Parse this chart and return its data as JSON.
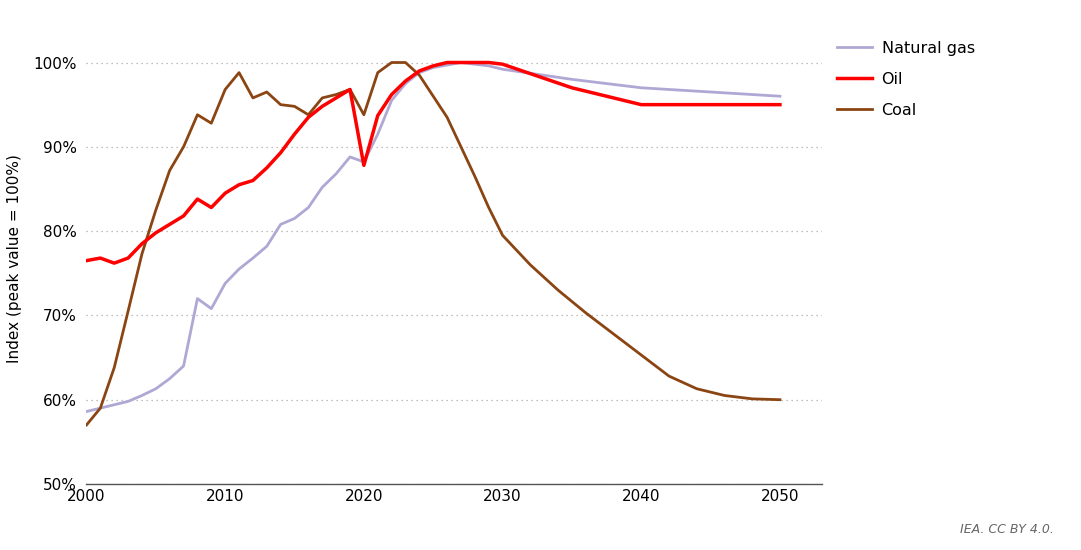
{
  "ylabel": "Index (peak value = 100%)",
  "xlim": [
    2000,
    2053
  ],
  "ylim": [
    0.5,
    1.035
  ],
  "yticks": [
    0.5,
    0.6,
    0.7,
    0.8,
    0.9,
    1.0
  ],
  "xticks": [
    2000,
    2010,
    2020,
    2030,
    2040,
    2050
  ],
  "background_color": "#ffffff",
  "credit": "IEA. CC BY 4.0.",
  "natural_gas": {
    "label": "Natural gas",
    "color": "#b0a8d4",
    "linewidth": 2.0,
    "x": [
      2000,
      2001,
      2002,
      2003,
      2004,
      2005,
      2006,
      2007,
      2008,
      2009,
      2010,
      2011,
      2012,
      2013,
      2014,
      2015,
      2016,
      2017,
      2018,
      2019,
      2020,
      2021,
      2022,
      2023,
      2024,
      2025,
      2026,
      2027,
      2028,
      2029,
      2030,
      2035,
      2040,
      2045,
      2050
    ],
    "y": [
      0.586,
      0.59,
      0.594,
      0.598,
      0.605,
      0.613,
      0.625,
      0.64,
      0.72,
      0.708,
      0.738,
      0.755,
      0.768,
      0.782,
      0.808,
      0.815,
      0.828,
      0.852,
      0.868,
      0.888,
      0.882,
      0.915,
      0.955,
      0.975,
      0.988,
      0.994,
      0.997,
      1.0,
      0.998,
      0.996,
      0.992,
      0.98,
      0.97,
      0.965,
      0.96
    ]
  },
  "oil": {
    "label": "Oil",
    "color": "#ff0000",
    "linewidth": 2.5,
    "x": [
      2000,
      2001,
      2002,
      2003,
      2004,
      2005,
      2006,
      2007,
      2008,
      2009,
      2010,
      2011,
      2012,
      2013,
      2014,
      2015,
      2016,
      2017,
      2018,
      2019,
      2020,
      2021,
      2022,
      2023,
      2024,
      2025,
      2026,
      2027,
      2028,
      2029,
      2030,
      2035,
      2040,
      2045,
      2050
    ],
    "y": [
      0.765,
      0.768,
      0.762,
      0.768,
      0.785,
      0.798,
      0.808,
      0.818,
      0.838,
      0.828,
      0.845,
      0.855,
      0.86,
      0.875,
      0.893,
      0.915,
      0.935,
      0.948,
      0.958,
      0.968,
      0.878,
      0.937,
      0.962,
      0.978,
      0.99,
      0.996,
      1.0,
      1.0,
      1.0,
      1.0,
      0.998,
      0.97,
      0.95,
      0.95,
      0.95
    ]
  },
  "coal": {
    "label": "Coal",
    "color": "#8B4513",
    "linewidth": 2.0,
    "x": [
      2000,
      2001,
      2002,
      2003,
      2004,
      2005,
      2006,
      2007,
      2008,
      2009,
      2010,
      2011,
      2012,
      2013,
      2014,
      2015,
      2016,
      2017,
      2018,
      2019,
      2020,
      2021,
      2022,
      2023,
      2024,
      2025,
      2026,
      2027,
      2028,
      2029,
      2030,
      2032,
      2034,
      2036,
      2038,
      2040,
      2042,
      2044,
      2046,
      2048,
      2050
    ],
    "y": [
      0.57,
      0.59,
      0.638,
      0.705,
      0.773,
      0.825,
      0.872,
      0.9,
      0.938,
      0.928,
      0.968,
      0.988,
      0.958,
      0.965,
      0.95,
      0.948,
      0.938,
      0.958,
      0.962,
      0.968,
      0.938,
      0.988,
      1.0,
      1.0,
      0.985,
      0.96,
      0.935,
      0.9,
      0.865,
      0.828,
      0.795,
      0.76,
      0.73,
      0.703,
      0.678,
      0.653,
      0.628,
      0.613,
      0.605,
      0.601,
      0.6
    ]
  }
}
